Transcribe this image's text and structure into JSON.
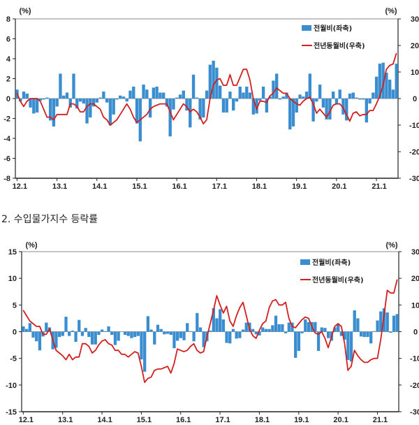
{
  "chart_data": [
    {
      "type": "bar+line",
      "title": "",
      "unit_left": "(%)",
      "unit_right": "(%)",
      "y_left": {
        "range": [
          -8,
          8
        ],
        "ticks": [
          "8",
          "6",
          "4",
          "2",
          "0",
          "-2",
          "-4",
          "-6",
          "-8"
        ]
      },
      "y_right": {
        "range": [
          -30,
          30
        ],
        "ticks": [
          "30",
          "20",
          "10",
          "0",
          "-10",
          "-20",
          "-30"
        ]
      },
      "x_tick_labels": [
        "12.1",
        "13.1",
        "14.1",
        "15.1",
        "16.1",
        "17.1",
        "18.1",
        "19.1",
        "20.1",
        "21.1"
      ],
      "x_start": "2012.1",
      "x_end": "2021.7",
      "legend": {
        "bar": "전월비(좌축)",
        "line": "전년동월비(우축)",
        "placement": "top-right"
      },
      "colors": {
        "bar": "#3a8ed0",
        "line": "#d21f1f"
      },
      "series": [
        {
          "name": "전월비(좌축)",
          "axis": "left",
          "kind": "bar",
          "values": [
            0.9,
            -0.3,
            0.7,
            0.5,
            -0.9,
            -1.5,
            -1.4,
            -0.2,
            -0.1,
            0.1,
            -2.2,
            -2.8,
            -0.8,
            2.5,
            0.3,
            0.6,
            -0.9,
            2.5,
            -1.0,
            -0.3,
            -0.5,
            -2.5,
            -1.9,
            -0.8,
            -0.4,
            0.1,
            0.7,
            -0.4,
            -2.7,
            -1.6,
            -0.1,
            0.3,
            0.2,
            -0.3,
            0.8,
            1.2,
            -2.5,
            -4.3,
            1.4,
            0.9,
            -1.9,
            1.1,
            1.2,
            0.6,
            0.6,
            -0.8,
            -3.8,
            -1.1,
            0.1,
            0.4,
            0.8,
            -1.2,
            -2.9,
            2.4,
            0.1,
            -2.1,
            -1.9,
            0.8,
            3.4,
            3.8,
            3.1,
            1.3,
            -1.4,
            -1.4,
            0.7,
            -1.2,
            -0.3,
            1.2,
            0.6,
            1.2,
            0.6,
            -1.6,
            -1.5,
            -0.2,
            1.2,
            -1.4,
            0.2,
            1.8,
            2.5,
            -0.1,
            0.2,
            0.6,
            -3.1,
            -2.8,
            -1.4,
            0.4,
            0.2,
            0.7,
            2.5,
            -2.3,
            -0.3,
            1.4,
            -0.9,
            -2.1,
            -2.1,
            0.7,
            -0.6,
            0.9,
            -1.6,
            -2.2,
            0.5,
            0.6,
            0.1,
            -0.1,
            -0.1,
            -2.4,
            -0.5,
            0.6,
            2.2,
            3.5,
            3.6,
            2.6,
            1.9,
            0.9,
            3.5
          ]
        },
        {
          "name": "전년동월비(우축)",
          "axis": "right",
          "kind": "line",
          "values": [
            2,
            -1,
            -3,
            -1,
            0,
            0,
            0,
            -1,
            -4,
            -7,
            -7,
            -8,
            -6,
            -6,
            -6,
            -6,
            -2,
            -2,
            -3,
            -5,
            -5,
            -3,
            -2,
            -2,
            -3,
            -4,
            -7,
            -8,
            -10,
            -9,
            -8,
            -6,
            -4,
            -2,
            -4,
            -7,
            -9,
            -8,
            -7,
            -6,
            -4,
            -3,
            -2.5,
            -2,
            -2,
            -2,
            -5,
            -8,
            -6,
            -4,
            -2,
            -3,
            -5,
            -4,
            -5,
            -7,
            -9.5,
            -8,
            0,
            5,
            7,
            7.5,
            5,
            5,
            9,
            5,
            5,
            8,
            11,
            11,
            7,
            0,
            -4,
            -1,
            -1,
            -1.5,
            1,
            2,
            4,
            3,
            2,
            2,
            0,
            -1,
            -2,
            -2.5,
            -1,
            0,
            0.5,
            -2,
            -5.5,
            -4,
            -5.5,
            -7,
            -5,
            -2.5,
            -2,
            -2,
            -3.5,
            -6,
            -8.5,
            -5.5,
            -5,
            -6.5,
            -6,
            -6,
            -4.5,
            -4.5,
            -2,
            1,
            5,
            11,
            12.5,
            13,
            17
          ]
        }
      ]
    },
    {
      "type": "bar+line",
      "title": "2. 수입물가지수 등락률",
      "unit_left": "(%)",
      "unit_right": "(%)",
      "y_left": {
        "range": [
          -15,
          15
        ],
        "ticks": [
          "15",
          "10",
          "5",
          "0",
          "-5",
          "-10",
          "-15"
        ]
      },
      "y_right": {
        "range": [
          -30,
          30
        ],
        "ticks": [
          "30",
          "20",
          "10",
          "0",
          "-10",
          "-20",
          "-30"
        ]
      },
      "x_tick_labels": [
        "12.1",
        "13.1",
        "14.1",
        "15.1",
        "16.1",
        "17.1",
        "18.1",
        "19.1",
        "20.1",
        "21.1"
      ],
      "x_start": "2012.1",
      "x_end": "2021.7",
      "legend": {
        "bar": "전월비(좌축)",
        "line": "전년동월비(우축)",
        "placement": "top-right"
      },
      "colors": {
        "bar": "#3a8ed0",
        "line": "#d21f1f"
      },
      "series": [
        {
          "name": "전월비(좌축)",
          "axis": "left",
          "kind": "bar",
          "values": [
            1.0,
            0.5,
            1.6,
            -1.1,
            -1.8,
            -3.5,
            -0.9,
            1.7,
            0.8,
            -3.3,
            -3.0,
            -1.0,
            -0.8,
            2.8,
            -0.8,
            0.2,
            -1.9,
            2.2,
            -0.8,
            0.7,
            -1.0,
            -2.4,
            -2.4,
            -0.6,
            0.4,
            0.1,
            1.0,
            -0.6,
            -2.5,
            -1.7,
            0.0,
            -0.6,
            -0.8,
            -1.2,
            -1.0,
            -0.8,
            -5.2,
            -7.5,
            2.9,
            0.4,
            -2.4,
            1.3,
            0.5,
            -0.5,
            -0.4,
            -0.6,
            -3.1,
            -1.7,
            -1.2,
            -1.6,
            1.6,
            0.1,
            -1.8,
            3.5,
            0.8,
            -2.9,
            -1.8,
            0.2,
            4.4,
            2.5,
            4.2,
            2.3,
            -2.1,
            -2.2,
            0.5,
            -1.3,
            -1.2,
            0.4,
            1.7,
            1.7,
            0.5,
            -0.5,
            -0.7,
            0.8,
            0.5,
            0.5,
            1.2,
            3.0,
            1.4,
            1.4,
            -0.3,
            1.7,
            1.7,
            -4.9,
            -3.6,
            -0.3,
            2.3,
            1.8,
            1.8,
            1.8,
            -3.6,
            0.8,
            0.7,
            -1.2,
            -1.7,
            0.8,
            1.4,
            -0.8,
            -1.5,
            -5.3,
            -5.6,
            4.0,
            2.5,
            -0.9,
            -1.0,
            -1.0,
            -2.2,
            0.1,
            2.1,
            3.8,
            4.4,
            3.6,
            -0.2,
            3.0,
            3.3
          ]
        },
        {
          "name": "전년동월비(우축)",
          "axis": "right",
          "kind": "line",
          "values": [
            8,
            6,
            4,
            3,
            2,
            2,
            -1,
            -1,
            1,
            -3,
            -7,
            -8,
            -9,
            -10.5,
            -8.5,
            -10.5,
            -9.5,
            -9.5,
            -4.5,
            -4.5,
            -5.5,
            -8,
            -7,
            -5,
            -3.5,
            -3,
            -4.5,
            -5,
            -7,
            -7,
            -8.5,
            -8.5,
            -9.5,
            -8.5,
            -7.5,
            -8,
            -13,
            -19,
            -17.5,
            -17,
            -14.5,
            -14,
            -14,
            -13.5,
            -13,
            -15.5,
            -12,
            -6.5,
            -7,
            -7.5,
            -7,
            -5.5,
            -4.5,
            -7,
            -8,
            -7.5,
            -2,
            3,
            8,
            13.5,
            10,
            7,
            9.5,
            4,
            2,
            6,
            9,
            11,
            6,
            1,
            -1.5,
            -2.5,
            0.5,
            3,
            4,
            9,
            11.5,
            12,
            10,
            10,
            11,
            5,
            2,
            1.5,
            3,
            4.5,
            5.5,
            5,
            2,
            -0.5,
            -1,
            0,
            -2.5,
            -6,
            -2,
            2,
            3,
            2,
            -4.5,
            -14.5,
            -13,
            -7,
            -9,
            -10.5,
            -11.5,
            -11.5,
            -10.5,
            -10,
            -10,
            -3,
            6,
            15.5,
            14.5,
            14.5,
            19.5
          ]
        }
      ]
    }
  ]
}
